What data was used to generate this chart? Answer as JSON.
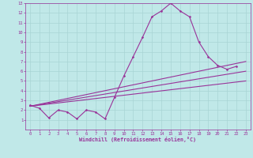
{
  "bg_color": "#c0e8e8",
  "grid_color": "#a8d4d4",
  "line_color": "#993399",
  "marker": "D",
  "marker_size": 1.5,
  "line_width": 0.8,
  "xlabel": "Windchill (Refroidissement éolien,°C)",
  "xlim": [
    -0.5,
    23.5
  ],
  "ylim": [
    0,
    13
  ],
  "xticks": [
    0,
    1,
    2,
    3,
    4,
    5,
    6,
    7,
    8,
    9,
    10,
    11,
    12,
    13,
    14,
    15,
    16,
    17,
    18,
    19,
    20,
    21,
    22,
    23
  ],
  "yticks": [
    1,
    2,
    3,
    4,
    5,
    6,
    7,
    8,
    9,
    10,
    11,
    12,
    13
  ],
  "tick_fontsize": 4.0,
  "xlabel_fontsize": 4.8,
  "series": [
    {
      "x": [
        0,
        1,
        2,
        3,
        4,
        5,
        6,
        7,
        8,
        9,
        10,
        11,
        12,
        13,
        14,
        15,
        16,
        17,
        18,
        19,
        20,
        21,
        22
      ],
      "y": [
        2.5,
        2.2,
        1.2,
        2.0,
        1.8,
        1.1,
        2.0,
        1.8,
        1.1,
        3.3,
        5.5,
        7.5,
        9.5,
        11.6,
        12.2,
        13.0,
        12.2,
        11.6,
        9.0,
        7.5,
        6.6,
        6.2,
        6.5
      ],
      "no_marker": false
    },
    {
      "x": [
        0,
        23
      ],
      "y": [
        2.4,
        7.0
      ],
      "no_marker": true
    },
    {
      "x": [
        0,
        23
      ],
      "y": [
        2.4,
        6.0
      ],
      "no_marker": true
    },
    {
      "x": [
        0,
        23
      ],
      "y": [
        2.4,
        5.0
      ],
      "no_marker": true
    }
  ]
}
